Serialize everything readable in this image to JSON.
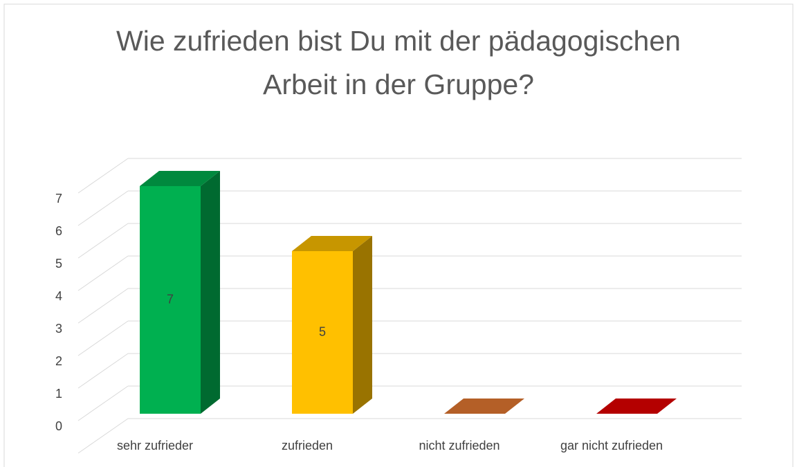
{
  "chart_data": {
    "type": "bar3d",
    "title": "Wie zufrieden bist Du mit der pädagogischen Arbeit in der Gruppe?",
    "categories": [
      "sehr zufrieder",
      "zufrieden",
      "nicht zufrieden",
      "gar nicht zufrieden"
    ],
    "values": [
      7,
      5,
      0,
      0
    ],
    "colors": [
      "#00b050",
      "#ffc000",
      "#c0652a",
      "#c00000"
    ],
    "ylim": [
      0,
      8
    ],
    "yticks": [
      0,
      1,
      2,
      3,
      4,
      5,
      6,
      7
    ],
    "grid": true
  }
}
